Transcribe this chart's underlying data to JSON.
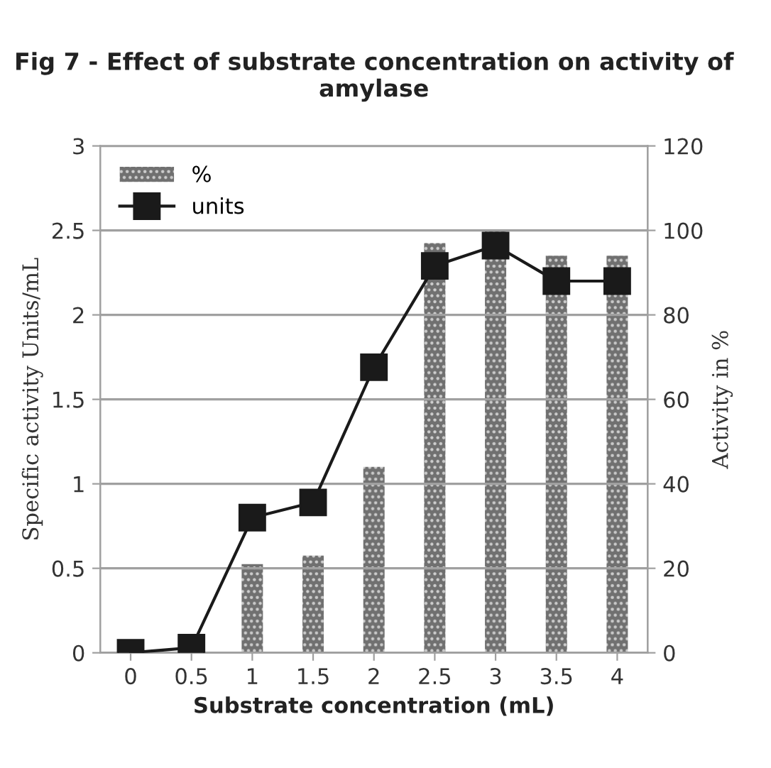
{
  "chart_data": {
    "type": "bar",
    "title": "Fig 7 - Effect of substrate concentration on activity of amylase",
    "xlabel": "Substrate concentration (mL)",
    "ylabel": "Specific activity Units/mL",
    "y2label": "Activity in %",
    "categories": [
      "0",
      "0.5",
      "1",
      "1.5",
      "2",
      "2.5",
      "3",
      "3.5",
      "4"
    ],
    "series": [
      {
        "name": "%",
        "axis": "y2",
        "color": "#707070",
        "values": [
          0,
          0,
          21,
          23,
          44,
          97,
          100,
          94,
          94
        ]
      },
      {
        "name": "units",
        "type": "line",
        "axis": "y",
        "color": "#1a1a1a",
        "marker": "square",
        "line_style": "solid",
        "values": [
          0,
          0.03,
          0.8,
          0.89,
          1.69,
          2.29,
          2.41,
          2.2,
          2.2
        ]
      }
    ],
    "ylim": [
      0,
      3
    ],
    "yticks": [
      0,
      0.5,
      1,
      1.5,
      2,
      2.5,
      3
    ],
    "y2lim": [
      0,
      120
    ],
    "y2ticks": [
      0,
      20,
      40,
      60,
      80,
      100,
      120
    ],
    "grid": "y",
    "legend": "top left"
  }
}
